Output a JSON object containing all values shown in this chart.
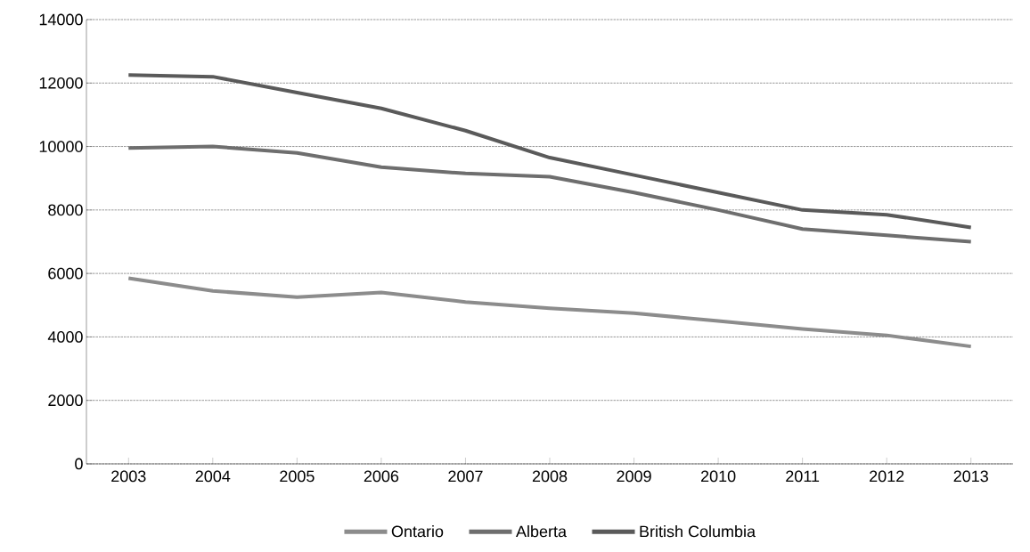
{
  "chart_data": {
    "type": "line",
    "categories": [
      "2003",
      "2004",
      "2005",
      "2006",
      "2007",
      "2008",
      "2009",
      "2010",
      "2011",
      "2012",
      "2013"
    ],
    "series": [
      {
        "name": "Ontario",
        "color": "#8c8c8c",
        "values": [
          5850,
          5450,
          5250,
          5400,
          5100,
          4900,
          4750,
          4500,
          4250,
          4050,
          3700
        ]
      },
      {
        "name": "Alberta",
        "color": "#6e6e6e",
        "values": [
          9950,
          10000,
          9800,
          9350,
          9150,
          9050,
          8550,
          8000,
          7400,
          7200,
          7000
        ]
      },
      {
        "name": "British Columbia",
        "color": "#5a5a5a",
        "values": [
          12250,
          12200,
          11700,
          11200,
          10500,
          9650,
          9100,
          8550,
          8000,
          7850,
          7450
        ]
      }
    ],
    "ylim": [
      0,
      14000
    ],
    "yticks": [
      0,
      2000,
      4000,
      6000,
      8000,
      10000,
      12000,
      14000
    ],
    "grid": "y",
    "legend": "bottom",
    "marker": "none",
    "line_style": "solid"
  }
}
